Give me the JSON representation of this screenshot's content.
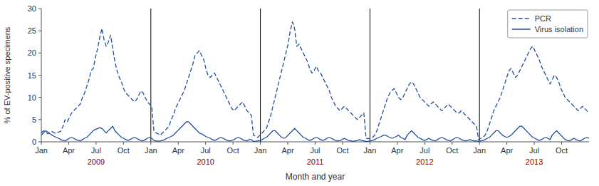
{
  "chart_data": {
    "type": "line",
    "xlabel": "Month and year",
    "ylabel": "% of EV-positive specimens",
    "xlim": [
      0,
      260
    ],
    "ylim": [
      0,
      30
    ],
    "yticks": [
      0,
      5,
      10,
      15,
      20,
      25,
      30
    ],
    "xticks": [
      {
        "value": 0,
        "label": "Jan"
      },
      {
        "value": 13,
        "label": "Apr"
      },
      {
        "value": 26,
        "label": "Jul"
      },
      {
        "value": 39,
        "label": "Oct"
      },
      {
        "value": 52,
        "label": "Jan"
      },
      {
        "value": 65,
        "label": "Apr"
      },
      {
        "value": 78,
        "label": "Jul"
      },
      {
        "value": 91,
        "label": "Oct"
      },
      {
        "value": 104,
        "label": "Jan"
      },
      {
        "value": 117,
        "label": "Apr"
      },
      {
        "value": 130,
        "label": "Jul"
      },
      {
        "value": 143,
        "label": "Oct"
      },
      {
        "value": 156,
        "label": "Jan"
      },
      {
        "value": 169,
        "label": "Apr"
      },
      {
        "value": 182,
        "label": "Jul"
      },
      {
        "value": 195,
        "label": "Oct"
      },
      {
        "value": 208,
        "label": "Jan"
      },
      {
        "value": 221,
        "label": "Apr"
      },
      {
        "value": 234,
        "label": "Jul"
      },
      {
        "value": 247,
        "label": "Oct"
      }
    ],
    "grid": false,
    "legend": "upper right",
    "vlines": [
      52,
      104,
      156,
      208
    ],
    "annotations": [
      {
        "text": "2009",
        "x": 26,
        "color": "#8B0000"
      },
      {
        "text": "2010",
        "x": 78,
        "color": "#8B0000"
      },
      {
        "text": "2011",
        "x": 130,
        "color": "#8B0000"
      },
      {
        "text": "2012",
        "x": 182,
        "color": "#8B0000"
      },
      {
        "text": "2013",
        "x": 234,
        "color": "#8B0000"
      }
    ],
    "x": [
      0,
      1.03,
      2.06,
      3.08,
      4.11,
      5.14,
      6.17,
      7.19,
      8.22,
      9.25,
      10.28,
      11.3,
      12.33,
      13.36,
      14.39,
      15.42,
      16.44,
      17.47,
      18.5,
      19.53,
      20.55,
      21.58,
      22.61,
      23.64,
      24.66,
      25.69,
      26.72,
      27.75,
      28.77,
      29.8,
      30.83,
      31.86,
      32.89,
      33.91,
      34.94,
      35.97,
      37,
      38.02,
      39.05,
      40.08,
      41.11,
      42.13,
      43.16,
      44.19,
      45.22,
      46.25,
      47.27,
      48.3,
      49.33,
      50.36,
      51.38,
      52.41,
      53.44,
      54.47,
      55.49,
      56.52,
      57.55,
      58.58,
      59.6,
      60.63,
      61.66,
      62.69,
      63.72,
      64.74,
      65.77,
      66.8,
      67.83,
      68.85,
      69.88,
      70.91,
      71.94,
      72.96,
      73.99,
      75.02,
      76.05,
      77.08,
      78.1,
      79.13,
      80.16,
      81.19,
      82.21,
      83.24,
      84.27,
      85.3,
      86.32,
      87.35,
      88.38,
      89.41,
      90.43,
      91.46,
      92.49,
      93.52,
      94.55,
      95.57,
      96.6,
      97.63,
      98.66,
      99.68,
      100.71,
      101.74,
      102.77,
      103.79,
      104.82,
      105.85,
      106.88,
      107.91,
      108.93,
      109.96,
      110.99,
      112.02,
      113.04,
      114.07,
      115.1,
      116.13,
      117.15,
      118.18,
      119.21,
      120.24,
      121.26,
      122.29,
      123.32,
      124.35,
      125.38,
      126.4,
      127.43,
      128.46,
      129.49,
      130.51,
      131.54,
      132.57,
      133.6,
      134.62,
      135.65,
      136.68,
      137.71,
      138.74,
      139.76,
      140.79,
      141.82,
      142.85,
      143.87,
      144.9,
      145.93,
      146.96,
      147.98,
      149.01,
      150.04,
      151.07,
      152.09,
      153.12,
      154.15,
      155.18,
      156.21,
      157.23,
      158.26,
      159.29,
      160.32,
      161.34,
      162.37,
      163.4,
      164.43,
      165.45,
      166.48,
      167.51,
      168.54,
      169.57,
      170.59,
      171.62,
      172.65,
      173.68,
      174.7,
      175.73,
      176.76,
      177.79,
      178.81,
      179.84,
      180.87,
      181.9,
      182.92,
      183.95,
      184.98,
      186.01,
      187.04,
      188.06,
      189.09,
      190.12,
      191.15,
      192.17,
      193.2,
      194.23,
      195.26,
      196.28,
      197.31,
      198.34,
      199.37,
      200.4,
      201.42,
      202.45,
      203.48,
      204.51,
      205.53,
      206.56,
      207.59,
      208.62,
      209.64,
      210.67,
      211.7,
      212.73,
      213.75,
      214.78,
      215.81,
      216.84,
      217.87,
      218.89,
      219.92,
      220.95,
      221.98,
      223,
      224.03,
      225.06,
      226.09,
      227.11,
      228.14,
      229.17,
      230.2,
      231.23,
      232.25,
      233.28,
      234.31,
      235.34,
      236.36,
      237.39,
      238.42,
      239.45,
      240.47,
      241.5,
      242.53,
      243.56,
      244.58,
      245.61,
      246.64,
      247.67,
      248.7,
      249.72,
      250.75,
      251.78,
      252.81,
      253.83,
      254.86,
      255.89,
      256.92,
      257.94,
      258.97,
      260
    ],
    "series": [
      {
        "name": "PCR",
        "color": "#1F4E9E",
        "line_style": "dashed",
        "values": [
          2.0,
          2.5,
          2.2,
          1.8,
          2.1,
          2.3,
          2.0,
          1.9,
          2.2,
          2.4,
          3.5,
          5.0,
          4.5,
          5.5,
          6.5,
          7.0,
          7.5,
          8.0,
          8.5,
          10.0,
          11.0,
          12.5,
          14.0,
          16.0,
          16.5,
          19.0,
          21.0,
          23.5,
          25.5,
          23.0,
          21.5,
          22.5,
          24.0,
          21.0,
          18.0,
          16.0,
          14.5,
          13.5,
          12.0,
          11.0,
          10.5,
          10.0,
          9.5,
          9.0,
          9.5,
          10.5,
          11.5,
          11.0,
          10.0,
          9.0,
          8.5,
          8.0,
          2.5,
          2.0,
          1.8,
          1.5,
          2.0,
          2.5,
          3.0,
          3.5,
          5.0,
          6.0,
          7.5,
          8.5,
          9.5,
          10.5,
          11.5,
          13.0,
          14.5,
          16.0,
          17.5,
          19.5,
          20.0,
          20.5,
          19.5,
          18.5,
          16.5,
          15.0,
          14.5,
          15.0,
          15.5,
          14.5,
          13.5,
          12.5,
          11.5,
          10.5,
          9.5,
          8.5,
          7.5,
          7.0,
          7.5,
          8.0,
          8.5,
          9.0,
          8.0,
          7.0,
          6.5,
          6.0,
          1.5,
          1.2,
          1.0,
          1.5,
          2.0,
          2.5,
          3.0,
          4.5,
          6.0,
          8.0,
          10.0,
          12.0,
          14.0,
          16.0,
          18.0,
          20.0,
          22.0,
          25.0,
          27.0,
          25.5,
          21.5,
          22.0,
          21.0,
          20.0,
          19.0,
          18.0,
          16.5,
          15.5,
          16.0,
          17.0,
          16.0,
          15.5,
          14.5,
          13.5,
          12.5,
          11.5,
          10.0,
          9.0,
          8.0,
          7.5,
          7.0,
          7.5,
          8.0,
          7.5,
          7.0,
          6.5,
          6.0,
          5.5,
          5.0,
          5.5,
          6.0,
          6.5,
          0.8,
          0.7,
          0.8,
          1.0,
          1.5,
          2.5,
          4.0,
          5.5,
          7.0,
          8.5,
          10.0,
          11.0,
          11.5,
          12.0,
          11.0,
          10.0,
          9.5,
          10.0,
          11.0,
          12.0,
          13.0,
          13.5,
          13.0,
          12.0,
          11.0,
          10.0,
          9.5,
          9.0,
          8.5,
          8.0,
          8.5,
          9.0,
          8.5,
          8.0,
          7.5,
          7.0,
          7.5,
          8.0,
          8.5,
          8.0,
          7.5,
          7.0,
          6.5,
          6.5,
          7.0,
          6.5,
          6.0,
          5.5,
          5.0,
          4.5,
          4.0,
          3.5,
          0.5,
          0.8,
          1.0,
          1.5,
          2.5,
          4.0,
          5.5,
          7.0,
          8.0,
          9.0,
          10.0,
          11.5,
          13.0,
          14.5,
          16.0,
          16.5,
          15.5,
          14.5,
          15.0,
          16.0,
          17.0,
          18.0,
          19.0,
          20.0,
          21.0,
          21.5,
          20.5,
          19.5,
          18.5,
          17.0,
          16.0,
          15.0,
          14.0,
          13.0,
          14.0,
          15.0,
          14.5,
          13.5,
          12.0,
          11.0,
          10.0,
          9.5,
          9.0,
          8.5,
          8.0,
          7.5,
          7.0,
          7.5,
          8.0,
          7.5,
          7.0,
          6.5
        ]
      },
      {
        "name": "Virus isolation",
        "color": "#1F4E9E",
        "line_style": "solid",
        "values": [
          1.5,
          2.0,
          2.5,
          2.2,
          1.8,
          1.5,
          1.2,
          1.0,
          0.8,
          0.5,
          0.3,
          0.2,
          0.5,
          0.8,
          1.0,
          0.8,
          0.5,
          0.3,
          0.2,
          0.5,
          0.8,
          1.0,
          1.5,
          2.0,
          2.5,
          2.8,
          3.0,
          3.2,
          3.0,
          2.5,
          2.0,
          2.5,
          3.0,
          3.5,
          2.5,
          2.0,
          1.5,
          1.0,
          0.8,
          0.5,
          0.3,
          0.5,
          0.8,
          1.0,
          0.8,
          0.5,
          0.3,
          0.2,
          0.5,
          0.8,
          1.0,
          0.8,
          0.3,
          0.2,
          0.1,
          0.2,
          0.3,
          0.5,
          0.8,
          1.0,
          1.2,
          1.5,
          2.0,
          2.5,
          3.0,
          3.5,
          4.0,
          4.5,
          4.5,
          4.0,
          3.5,
          3.0,
          2.5,
          2.0,
          1.8,
          1.5,
          1.2,
          1.0,
          0.8,
          0.5,
          0.3,
          0.5,
          0.8,
          1.0,
          0.8,
          0.5,
          0.3,
          0.2,
          0.3,
          0.5,
          0.8,
          1.0,
          0.8,
          0.5,
          0.3,
          0.2,
          0.5,
          0.5,
          0.1,
          0.1,
          0.2,
          0.3,
          0.5,
          0.8,
          1.0,
          1.5,
          2.0,
          2.5,
          2.5,
          2.0,
          1.5,
          1.0,
          0.8,
          1.0,
          1.5,
          2.0,
          2.5,
          3.0,
          2.5,
          2.0,
          1.5,
          1.0,
          0.8,
          0.5,
          0.3,
          0.5,
          0.8,
          1.0,
          0.8,
          0.5,
          0.3,
          0.5,
          0.8,
          1.0,
          0.8,
          0.5,
          0.3,
          0.2,
          0.3,
          0.5,
          0.8,
          0.5,
          0.3,
          0.2,
          0.1,
          0.2,
          0.3,
          0.5,
          0.3,
          0.2,
          0.1,
          0.1,
          0.2,
          0.3,
          0.5,
          0.8,
          1.0,
          1.2,
          1.5,
          1.5,
          1.2,
          1.0,
          0.8,
          1.0,
          1.2,
          1.5,
          1.0,
          0.8,
          0.5,
          1.5,
          2.0,
          2.5,
          2.0,
          1.5,
          1.0,
          0.8,
          0.5,
          0.3,
          0.5,
          0.8,
          0.5,
          0.3,
          0.2,
          0.5,
          0.8,
          1.0,
          0.8,
          0.5,
          0.3,
          0.2,
          0.5,
          0.8,
          1.0,
          0.8,
          0.5,
          0.3,
          0.2,
          0.3,
          0.5,
          0.3,
          0.2,
          0.2,
          0.1,
          0.2,
          0.3,
          0.5,
          0.8,
          1.0,
          1.5,
          2.0,
          2.5,
          2.5,
          2.0,
          1.5,
          1.2,
          1.0,
          1.2,
          1.5,
          2.0,
          2.5,
          3.0,
          3.5,
          3.5,
          3.0,
          2.5,
          2.0,
          1.5,
          1.0,
          0.8,
          0.5,
          0.3,
          0.5,
          0.8,
          1.0,
          0.8,
          0.5,
          1.5,
          2.0,
          2.5,
          2.0,
          1.5,
          1.0,
          0.5,
          0.3,
          0.2,
          0.5,
          0.8,
          0.5,
          0.3,
          0.2,
          0.5,
          0.8,
          1.0,
          0.8
        ]
      }
    ]
  }
}
